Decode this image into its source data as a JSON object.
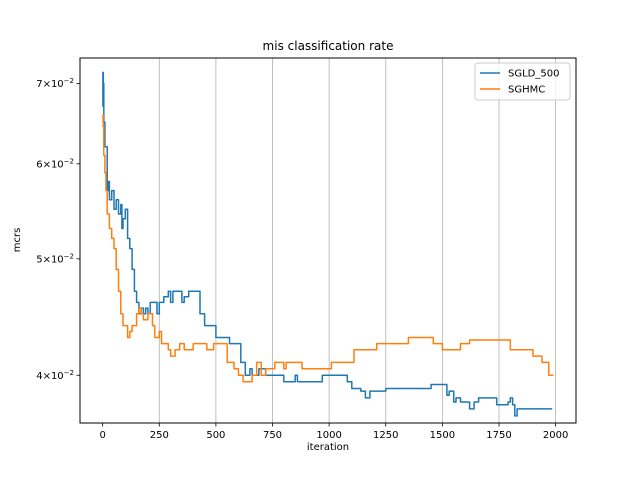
{
  "chart_data": {
    "type": "line",
    "title": "mis classification rate",
    "xlabel": "iteration",
    "ylabel": "mcrs",
    "xlim": [
      -100,
      2090
    ],
    "ylim": [
      0.0365,
      0.0735
    ],
    "yscale": "log",
    "grid": "vertical",
    "legend_position": "top-right",
    "xticks": [
      0,
      250,
      500,
      750,
      1000,
      1250,
      1500,
      1750,
      2000
    ],
    "xtick_labels": [
      "0",
      "250",
      "500",
      "750",
      "1000",
      "1250",
      "1500",
      "1750",
      "2000"
    ],
    "yticks": [
      0.04,
      0.05,
      0.06,
      0.07
    ],
    "ytick_labels": [
      {
        "mantissa": "4",
        "exponent": "−2"
      },
      {
        "mantissa": "5",
        "exponent": "−2"
      },
      {
        "mantissa": "6",
        "exponent": "−2"
      },
      {
        "mantissa": "7",
        "exponent": "−2"
      }
    ],
    "series": [
      {
        "name": "SGLD_500",
        "color": "#1f77b4",
        "points": [
          [
            0,
            0.067
          ],
          [
            1,
            0.0715
          ],
          [
            3,
            0.07
          ],
          [
            5,
            0.065
          ],
          [
            10,
            0.062
          ],
          [
            20,
            0.057
          ],
          [
            25,
            0.058
          ],
          [
            30,
            0.056
          ],
          [
            40,
            0.057
          ],
          [
            50,
            0.055
          ],
          [
            60,
            0.056
          ],
          [
            70,
            0.0545
          ],
          [
            80,
            0.0555
          ],
          [
            85,
            0.053
          ],
          [
            90,
            0.054
          ],
          [
            100,
            0.055
          ],
          [
            110,
            0.052
          ],
          [
            120,
            0.051
          ],
          [
            130,
            0.049
          ],
          [
            140,
            0.047
          ],
          [
            150,
            0.046
          ],
          [
            160,
            0.045
          ],
          [
            170,
            0.0455
          ],
          [
            180,
            0.045
          ],
          [
            190,
            0.0455
          ],
          [
            200,
            0.045
          ],
          [
            210,
            0.046
          ],
          [
            230,
            0.046
          ],
          [
            240,
            0.045
          ],
          [
            250,
            0.046
          ],
          [
            270,
            0.0465
          ],
          [
            290,
            0.047
          ],
          [
            300,
            0.046
          ],
          [
            310,
            0.047
          ],
          [
            340,
            0.047
          ],
          [
            350,
            0.046
          ],
          [
            360,
            0.0465
          ],
          [
            380,
            0.047
          ],
          [
            420,
            0.047
          ],
          [
            430,
            0.045
          ],
          [
            450,
            0.044
          ],
          [
            480,
            0.044
          ],
          [
            500,
            0.043
          ],
          [
            540,
            0.043
          ],
          [
            560,
            0.0425
          ],
          [
            600,
            0.0425
          ],
          [
            610,
            0.041
          ],
          [
            630,
            0.04
          ],
          [
            650,
            0.0405
          ],
          [
            660,
            0.04
          ],
          [
            680,
            0.04
          ],
          [
            690,
            0.0405
          ],
          [
            720,
            0.04
          ],
          [
            760,
            0.04
          ],
          [
            800,
            0.0395
          ],
          [
            850,
            0.04
          ],
          [
            860,
            0.0395
          ],
          [
            960,
            0.0395
          ],
          [
            970,
            0.04
          ],
          [
            1050,
            0.04
          ],
          [
            1080,
            0.0395
          ],
          [
            1100,
            0.039
          ],
          [
            1140,
            0.0388
          ],
          [
            1160,
            0.0383
          ],
          [
            1180,
            0.0388
          ],
          [
            1230,
            0.0388
          ],
          [
            1250,
            0.039
          ],
          [
            1440,
            0.039
          ],
          [
            1450,
            0.0393
          ],
          [
            1510,
            0.0393
          ],
          [
            1520,
            0.0385
          ],
          [
            1530,
            0.0388
          ],
          [
            1550,
            0.038
          ],
          [
            1560,
            0.0383
          ],
          [
            1580,
            0.038
          ],
          [
            1620,
            0.0375
          ],
          [
            1640,
            0.038
          ],
          [
            1660,
            0.0383
          ],
          [
            1720,
            0.0383
          ],
          [
            1740,
            0.0378
          ],
          [
            1770,
            0.0378
          ],
          [
            1790,
            0.038
          ],
          [
            1800,
            0.0383
          ],
          [
            1810,
            0.0378
          ],
          [
            1820,
            0.037
          ],
          [
            1830,
            0.0375
          ],
          [
            1985,
            0.0375
          ]
        ]
      },
      {
        "name": "SGHMC",
        "color": "#ff7f0e",
        "points": [
          [
            0,
            0.066
          ],
          [
            2,
            0.0645
          ],
          [
            5,
            0.061
          ],
          [
            10,
            0.059
          ],
          [
            15,
            0.057
          ],
          [
            20,
            0.0545
          ],
          [
            30,
            0.053
          ],
          [
            40,
            0.052
          ],
          [
            50,
            0.051
          ],
          [
            60,
            0.049
          ],
          [
            70,
            0.047
          ],
          [
            80,
            0.045
          ],
          [
            90,
            0.044
          ],
          [
            100,
            0.044
          ],
          [
            110,
            0.043
          ],
          [
            120,
            0.0435
          ],
          [
            130,
            0.044
          ],
          [
            140,
            0.044
          ],
          [
            150,
            0.045
          ],
          [
            160,
            0.0455
          ],
          [
            170,
            0.045
          ],
          [
            180,
            0.0445
          ],
          [
            200,
            0.045
          ],
          [
            220,
            0.044
          ],
          [
            230,
            0.043
          ],
          [
            250,
            0.0435
          ],
          [
            260,
            0.0425
          ],
          [
            290,
            0.042
          ],
          [
            300,
            0.0415
          ],
          [
            320,
            0.042
          ],
          [
            340,
            0.0425
          ],
          [
            360,
            0.042
          ],
          [
            390,
            0.042
          ],
          [
            400,
            0.0425
          ],
          [
            440,
            0.0425
          ],
          [
            460,
            0.042
          ],
          [
            490,
            0.0425
          ],
          [
            530,
            0.0425
          ],
          [
            550,
            0.041
          ],
          [
            580,
            0.0405
          ],
          [
            600,
            0.04
          ],
          [
            620,
            0.0395
          ],
          [
            640,
            0.0395
          ],
          [
            660,
            0.04
          ],
          [
            680,
            0.041
          ],
          [
            700,
            0.04
          ],
          [
            720,
            0.0405
          ],
          [
            750,
            0.0405
          ],
          [
            760,
            0.041
          ],
          [
            800,
            0.0405
          ],
          [
            810,
            0.041
          ],
          [
            870,
            0.041
          ],
          [
            880,
            0.0405
          ],
          [
            1000,
            0.0405
          ],
          [
            1010,
            0.041
          ],
          [
            1100,
            0.041
          ],
          [
            1110,
            0.042
          ],
          [
            1200,
            0.042
          ],
          [
            1210,
            0.0425
          ],
          [
            1340,
            0.0425
          ],
          [
            1350,
            0.043
          ],
          [
            1450,
            0.043
          ],
          [
            1460,
            0.0425
          ],
          [
            1480,
            0.0425
          ],
          [
            1500,
            0.042
          ],
          [
            1560,
            0.042
          ],
          [
            1580,
            0.0425
          ],
          [
            1610,
            0.0425
          ],
          [
            1620,
            0.0428
          ],
          [
            1790,
            0.0428
          ],
          [
            1800,
            0.042
          ],
          [
            1850,
            0.042
          ],
          [
            1900,
            0.0415
          ],
          [
            1940,
            0.041
          ],
          [
            1970,
            0.04
          ],
          [
            1990,
            0.04
          ]
        ]
      }
    ]
  }
}
